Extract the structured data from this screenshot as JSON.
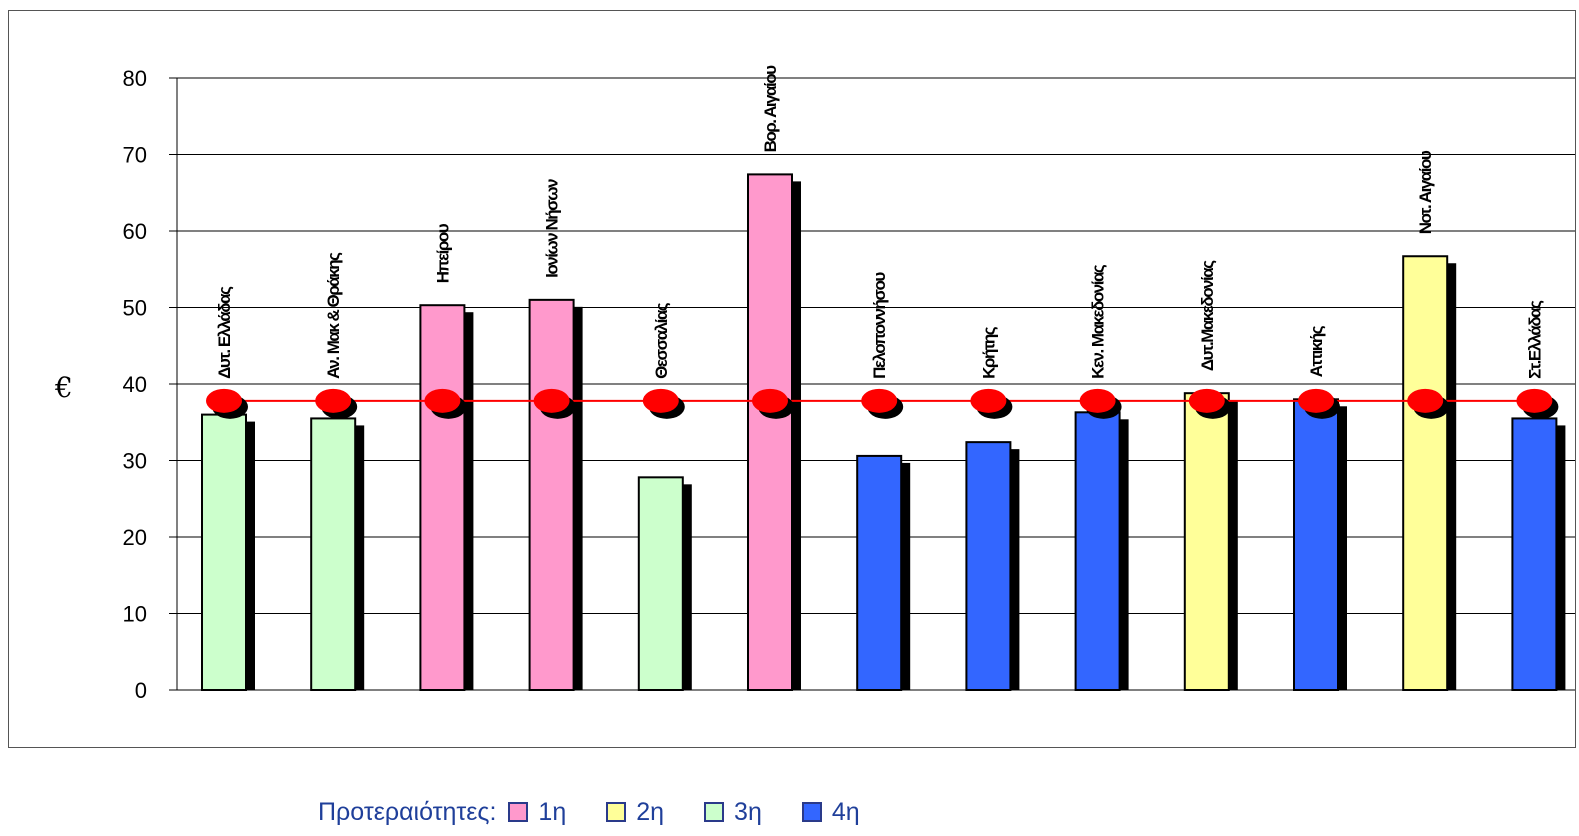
{
  "chart_data": {
    "type": "bar",
    "title": "",
    "xlabel": "",
    "ylabel": "€",
    "ylim": [
      0,
      80
    ],
    "yticks": [
      0,
      10,
      20,
      30,
      40,
      50,
      60,
      70,
      80
    ],
    "grid": true,
    "categories": [
      "Δυτ. Ελλάδας",
      "Αν. Μακ & Θράκης",
      "Ηπείρου",
      "Ιονίων Νήσων",
      "Θεσσαλίας",
      "Βορ. Αιγαίου",
      "Πελοποννήσου",
      "Κρήτης",
      "Κεν. Μακεδονίας",
      "Δυτ.Μακεδονίας",
      "Αττικής",
      "Νοτ. Αιγαίου",
      "Στ.Ελλάδας"
    ],
    "values": [
      36,
      35.5,
      50.3,
      51,
      27.8,
      67.4,
      30.6,
      32.4,
      36.3,
      38.8,
      38,
      56.7,
      35.5
    ],
    "priority": [
      "3η",
      "3η",
      "1η",
      "1η",
      "3η",
      "1η",
      "4η",
      "4η",
      "4η",
      "2η",
      "4η",
      "2η",
      "4η"
    ],
    "reference_line": {
      "value": 37.8,
      "color": "#ff0000",
      "marker": "circle"
    },
    "legend": {
      "title": "Προτεραιότητες:",
      "placement": "bottom",
      "items": [
        {
          "label": "1η",
          "color": "#ff99cc"
        },
        {
          "label": "2η",
          "color": "#ffff99"
        },
        {
          "label": "3η",
          "color": "#ccffcc"
        },
        {
          "label": "4η",
          "color": "#3366ff"
        }
      ]
    }
  }
}
